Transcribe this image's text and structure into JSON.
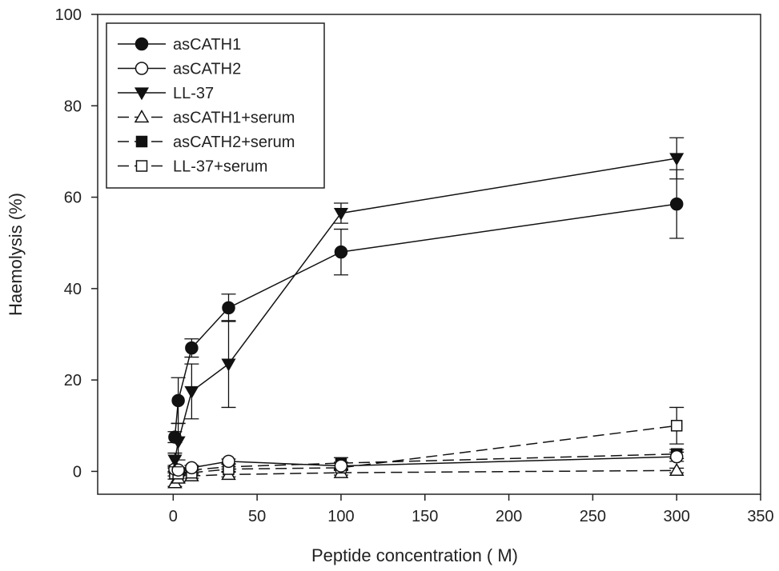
{
  "chart_data": {
    "type": "line",
    "title": "",
    "xlabel": "Peptide concentration ( M)",
    "ylabel": "Haemolysis (%)",
    "xlim": [
      -45,
      350
    ],
    "ylim": [
      -5,
      100
    ],
    "xticks": [
      0,
      50,
      100,
      150,
      200,
      250,
      300,
      350
    ],
    "yticks": [
      0,
      20,
      40,
      60,
      80,
      100
    ],
    "grid": false,
    "legend_position": "top-left",
    "x": [
      1,
      3,
      5,
      11,
      33,
      100,
      300
    ],
    "series": [
      {
        "name": "asCATH1",
        "marker": "filled-circle",
        "dash": "solid",
        "values": [
          7.5,
          15.5,
          0,
          27,
          35.8,
          48,
          58.5
        ],
        "errors": [
          1.2,
          5,
          0,
          2,
          3,
          5,
          7.5
        ]
      },
      {
        "name": "asCATH2",
        "marker": "open-circle",
        "dash": "solid",
        "values": [
          0.5,
          0.3,
          0,
          0.8,
          2.2,
          1.2,
          3.2
        ],
        "errors": [
          0.8,
          0.5,
          0,
          0.5,
          0.5,
          0.8,
          1
        ]
      },
      {
        "name": "LL-37",
        "marker": "filled-triangle-down",
        "dash": "solid",
        "values": [
          2.5,
          6.5,
          0,
          17.5,
          23.5,
          56.5,
          68.5
        ],
        "errors": [
          1.5,
          4,
          0,
          6,
          9.5,
          2.2,
          4.5
        ]
      },
      {
        "name": "asCATH1+serum",
        "marker": "open-triangle-up",
        "dash": "dashed",
        "values": [
          -2.5,
          -1.5,
          0,
          -1,
          -0.7,
          -0.3,
          0.2
        ],
        "errors": [
          0.8,
          0.8,
          0,
          0.5,
          0.5,
          0.5,
          0.5
        ]
      },
      {
        "name": "asCATH2+serum",
        "marker": "filled-square",
        "dash": "dashed",
        "values": [
          0.2,
          -0.3,
          0,
          0.3,
          1,
          1.8,
          3.8
        ],
        "errors": [
          0.5,
          0.5,
          0,
          0.5,
          0.5,
          1.2,
          1
        ]
      },
      {
        "name": "LL-37+serum",
        "marker": "open-square",
        "dash": "dashed",
        "values": [
          -0.5,
          -0.5,
          0,
          -0.3,
          0.5,
          0.8,
          10
        ],
        "errors": [
          0.5,
          0.5,
          0,
          0.5,
          0.5,
          0.5,
          4
        ]
      }
    ]
  }
}
